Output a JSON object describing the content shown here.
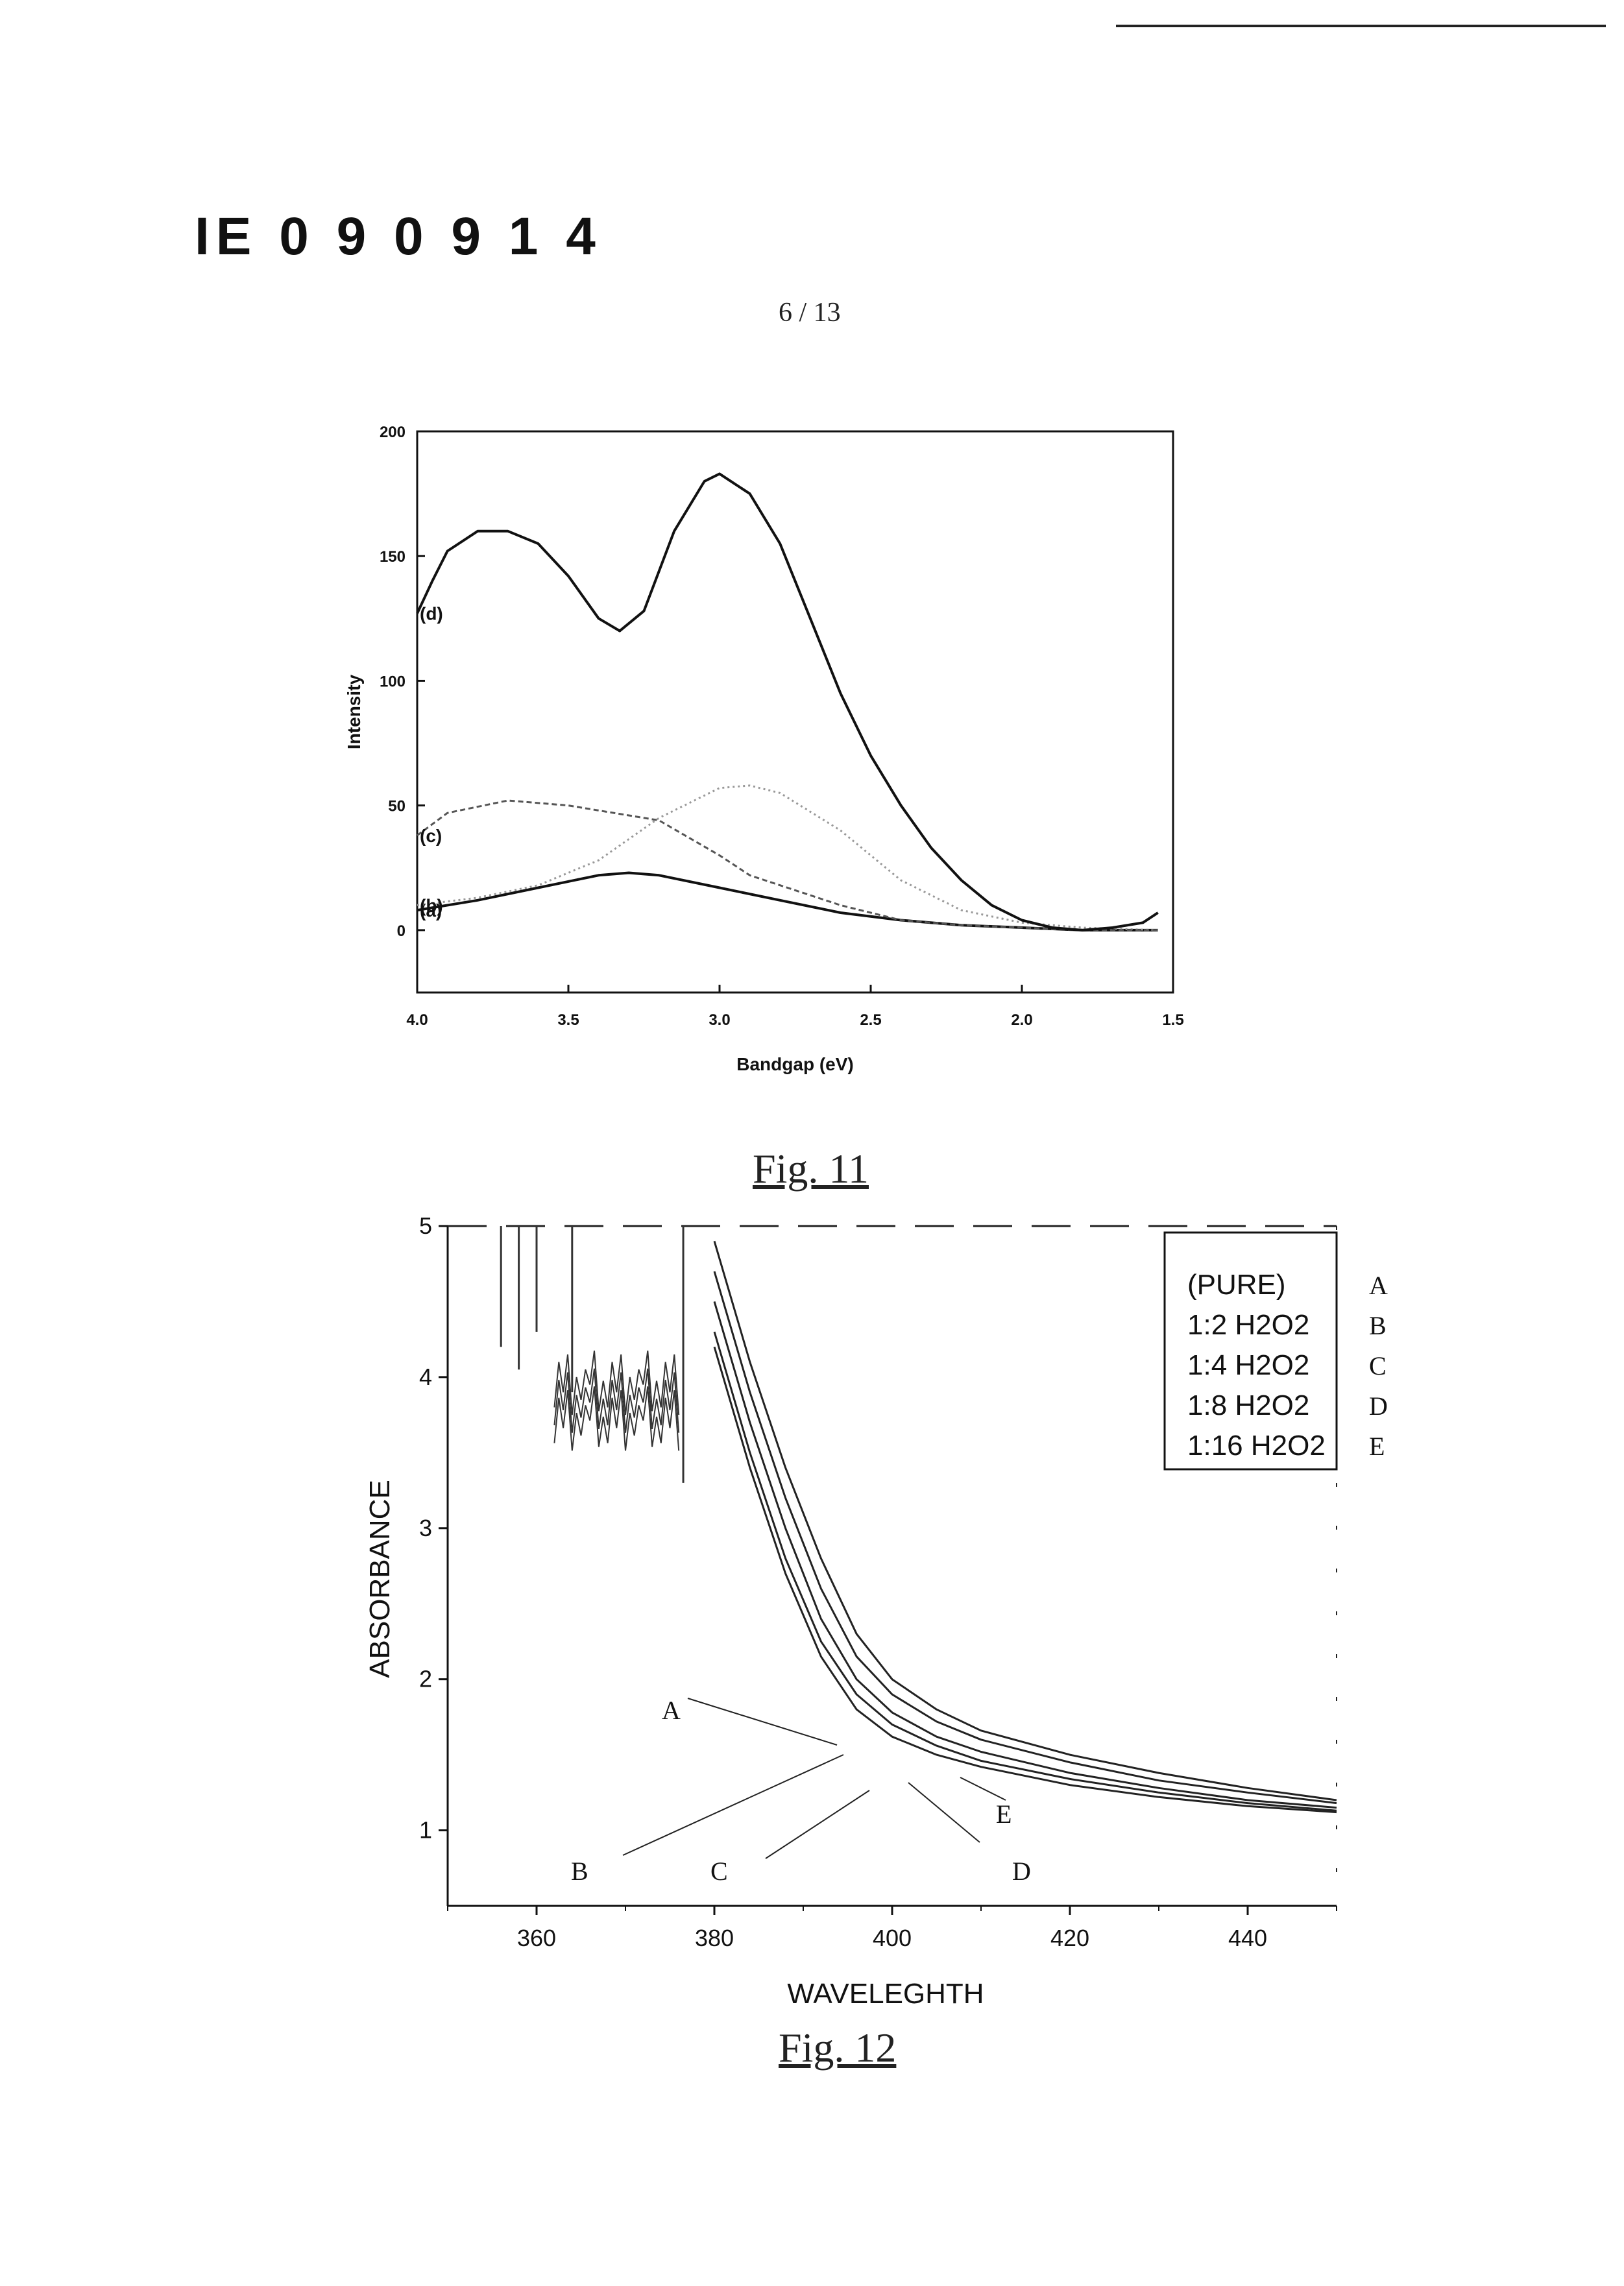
{
  "document": {
    "doc_id": "IE 0 9 0 9 1 4",
    "page_number": "6 / 13"
  },
  "chart_data": [
    {
      "type": "line",
      "figure_label": "Fig. 11",
      "xlabel": "Bandgap (eV)",
      "ylabel": "Intensity",
      "xlim": [
        4.0,
        1.5
      ],
      "ylim": [
        -25,
        200
      ],
      "x_ticks": [
        "4.0",
        "3.5",
        "3.0",
        "2.5",
        "2.0",
        "1.5"
      ],
      "y_ticks": [
        "0",
        "50",
        "100",
        "150",
        "200"
      ],
      "series": [
        {
          "name": "(a)",
          "x": [
            4.0,
            3.8,
            3.6,
            3.4,
            3.3,
            3.2,
            3.0,
            2.8,
            2.6,
            2.4,
            2.2,
            2.0,
            1.8,
            1.55
          ],
          "y": [
            8,
            12,
            17,
            22,
            23,
            22,
            17,
            12,
            7,
            4,
            2,
            1,
            0,
            0
          ]
        },
        {
          "name": "(b)",
          "x": [
            4.0,
            3.8,
            3.6,
            3.4,
            3.2,
            3.0,
            2.9,
            2.8,
            2.6,
            2.4,
            2.2,
            2.0,
            1.8,
            1.55
          ],
          "y": [
            10,
            13,
            18,
            28,
            45,
            57,
            58,
            55,
            40,
            20,
            8,
            3,
            1,
            0
          ]
        },
        {
          "name": "(c)",
          "x": [
            4.0,
            3.9,
            3.7,
            3.5,
            3.3,
            3.2,
            3.0,
            2.9,
            2.8,
            2.6,
            2.4,
            2.2,
            2.0,
            1.8,
            1.55
          ],
          "y": [
            38,
            47,
            52,
            50,
            46,
            44,
            30,
            22,
            18,
            10,
            4,
            2,
            1,
            0,
            0
          ]
        },
        {
          "name": "(d)",
          "x": [
            4.0,
            3.95,
            3.9,
            3.8,
            3.7,
            3.6,
            3.5,
            3.4,
            3.33,
            3.25,
            3.15,
            3.05,
            3.0,
            2.9,
            2.8,
            2.7,
            2.6,
            2.5,
            2.4,
            2.3,
            2.2,
            2.1,
            2.0,
            1.9,
            1.8,
            1.7,
            1.6,
            1.55
          ],
          "y": [
            127,
            140,
            152,
            160,
            160,
            155,
            142,
            125,
            120,
            128,
            160,
            180,
            183,
            175,
            155,
            125,
            95,
            70,
            50,
            33,
            20,
            10,
            4,
            1,
            0,
            1,
            3,
            7
          ]
        }
      ]
    },
    {
      "type": "line",
      "figure_label": "Fig. 12",
      "xlabel": "WAVELEGHTH",
      "ylabel": "ABSORBANCE",
      "xlim": [
        350,
        450
      ],
      "ylim": [
        0.5,
        5
      ],
      "x_ticks": [
        "360",
        "380",
        "400",
        "420",
        "440"
      ],
      "y_ticks": [
        "1",
        "2",
        "3",
        "4",
        "5"
      ],
      "legend": {
        "placement": "top-right",
        "entries": [
          {
            "label": "(PURE)",
            "letter": "A"
          },
          {
            "label": "1:2 H2O2",
            "letter": "B"
          },
          {
            "label": "1:4 H2O2",
            "letter": "C"
          },
          {
            "label": "1:8 H2O2",
            "letter": "D"
          },
          {
            "label": "1:16 H2O2",
            "letter": "E"
          }
        ]
      },
      "annotations": [
        "A",
        "B",
        "C",
        "D",
        "E"
      ],
      "series": [
        {
          "name": "A",
          "x": [
            380,
            384,
            388,
            392,
            396,
            400,
            405,
            410,
            420,
            430,
            440,
            450
          ],
          "y": [
            4.2,
            3.4,
            2.7,
            2.15,
            1.8,
            1.62,
            1.5,
            1.42,
            1.3,
            1.22,
            1.16,
            1.12
          ]
        },
        {
          "name": "B",
          "x": [
            380,
            384,
            388,
            392,
            396,
            400,
            405,
            410,
            420,
            430,
            440,
            450
          ],
          "y": [
            4.3,
            3.5,
            2.8,
            2.25,
            1.9,
            1.7,
            1.56,
            1.46,
            1.34,
            1.25,
            1.18,
            1.13
          ]
        },
        {
          "name": "C",
          "x": [
            380,
            384,
            388,
            392,
            396,
            400,
            405,
            410,
            420,
            430,
            440,
            450
          ],
          "y": [
            4.5,
            3.7,
            3.0,
            2.4,
            2.0,
            1.78,
            1.62,
            1.52,
            1.38,
            1.28,
            1.2,
            1.15
          ]
        },
        {
          "name": "D",
          "x": [
            380,
            384,
            388,
            392,
            396,
            400,
            405,
            410,
            420,
            430,
            440,
            450
          ],
          "y": [
            4.7,
            3.9,
            3.2,
            2.6,
            2.15,
            1.9,
            1.72,
            1.6,
            1.45,
            1.33,
            1.25,
            1.18
          ]
        },
        {
          "name": "E",
          "x": [
            380,
            384,
            388,
            392,
            396,
            400,
            405,
            410,
            420,
            430,
            440,
            450
          ],
          "y": [
            4.9,
            4.1,
            3.4,
            2.8,
            2.3,
            2.0,
            1.8,
            1.66,
            1.5,
            1.38,
            1.28,
            1.2
          ]
        }
      ]
    }
  ]
}
